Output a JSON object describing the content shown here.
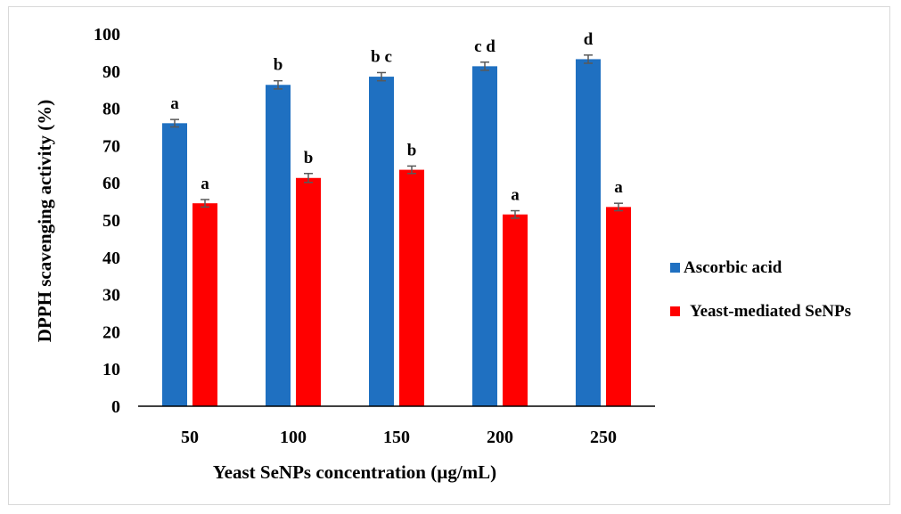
{
  "chart_data": {
    "type": "bar",
    "title": "",
    "xlabel": "Yeast SeNPs concentration (µg/mL)",
    "ylabel": "DPPH scavenging activity (%)",
    "ylim": [
      0,
      100
    ],
    "yticks": [
      0,
      10,
      20,
      30,
      40,
      50,
      60,
      70,
      80,
      90,
      100
    ],
    "categories": [
      "50",
      "100",
      "150",
      "200",
      "250"
    ],
    "grid": false,
    "legend_position": "right",
    "series": [
      {
        "name": "Ascorbic acid",
        "color": "#1f70c1",
        "values": [
          76,
          86.3,
          88.5,
          91.3,
          93.2
        ],
        "errors": [
          1.0,
          1.1,
          1.1,
          1.1,
          1.1
        ],
        "labels": [
          "a",
          "b",
          "b c",
          "c d",
          "d"
        ]
      },
      {
        "name": "Yeast-mediated SeNPs",
        "color": "#ff0000",
        "values": [
          54.5,
          61.3,
          63.5,
          51.5,
          53.5
        ],
        "errors": [
          1.0,
          1.2,
          1.0,
          1.0,
          1.0
        ],
        "labels": [
          "a",
          "b",
          "b",
          "a",
          "a"
        ]
      }
    ],
    "error_bar_color": "#595959"
  }
}
